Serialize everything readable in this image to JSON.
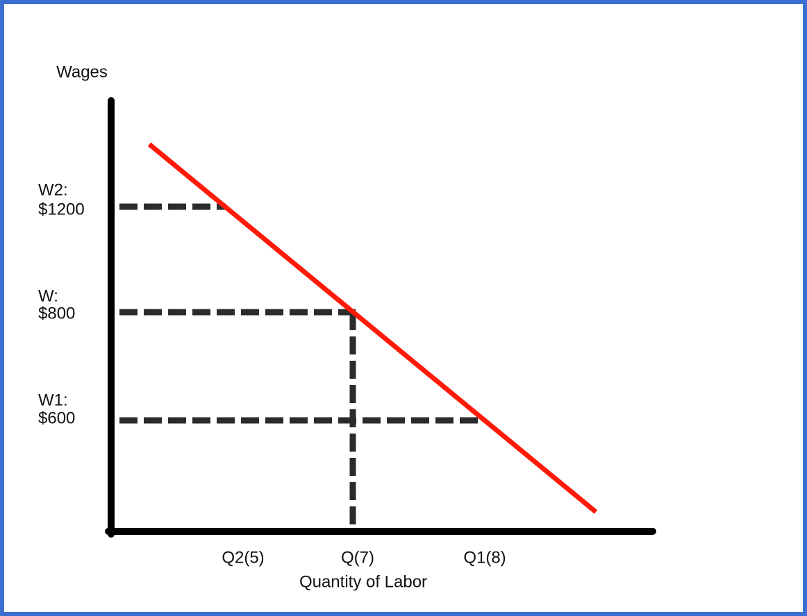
{
  "y_axis": {
    "label": "Wages"
  },
  "x_axis": {
    "label": "Quantity of Labor"
  },
  "wage_levels": [
    {
      "name": "W2:",
      "value": "$1200"
    },
    {
      "name": "W:",
      "value": "$800"
    },
    {
      "name": "W1:",
      "value": "$600"
    }
  ],
  "quantity_levels": [
    "Q2(5)",
    "Q(7)",
    "Q1(8)"
  ]
}
